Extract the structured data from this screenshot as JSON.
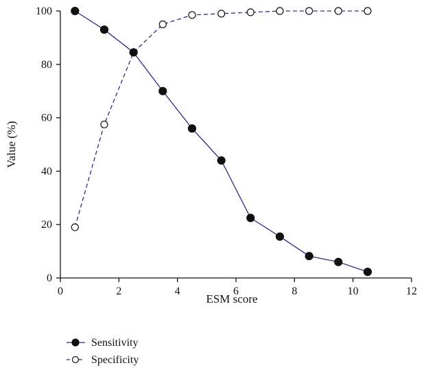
{
  "chart_data": {
    "type": "line",
    "xlabel": "ESM score",
    "ylabel": "Value (%)",
    "xlim": [
      0,
      12
    ],
    "ylim": [
      0,
      100
    ],
    "xticks": [
      "0",
      "2",
      "4",
      "6",
      "8",
      "10",
      "12"
    ],
    "yticks": [
      "0",
      "20",
      "40",
      "60",
      "80",
      "100"
    ],
    "grid": false,
    "legend_position": "bottom-left",
    "series": [
      {
        "name": "Sensitivity",
        "color": "#2b2b8f",
        "line_style": "solid",
        "marker": "filled-circle",
        "x": [
          0.5,
          1.5,
          2.5,
          3.5,
          4.5,
          5.5,
          6.5,
          7.5,
          8.5,
          9.5,
          10.5
        ],
        "y": [
          100,
          93,
          84.5,
          70,
          56,
          44,
          22.5,
          15.5,
          8.2,
          6,
          2.3
        ]
      },
      {
        "name": "Specificity",
        "color": "#2b2b8f",
        "line_style": "dashed",
        "marker": "open-circle",
        "x": [
          0.5,
          1.5,
          2.5,
          3.5,
          4.5,
          5.5,
          6.5,
          7.5,
          8.5,
          9.5,
          10.5
        ],
        "y": [
          19,
          57.5,
          84.5,
          95,
          98.5,
          99,
          99.5,
          100,
          100,
          100,
          100
        ]
      }
    ]
  }
}
